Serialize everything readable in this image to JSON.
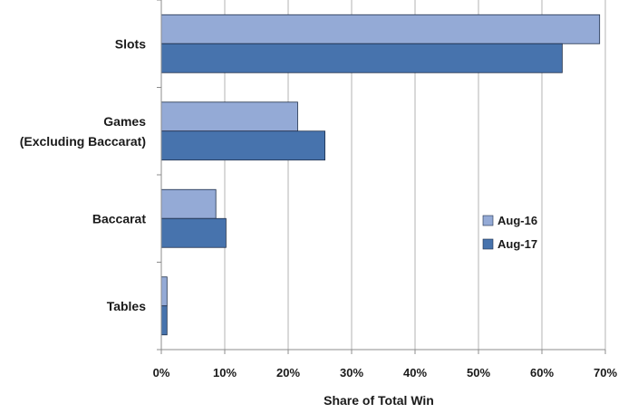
{
  "chart_data": {
    "type": "bar",
    "orientation": "horizontal",
    "categories": [
      "Slots",
      "Games\n(Excluding Baccarat)",
      "Baccarat",
      "Tables"
    ],
    "series": [
      {
        "name": "Aug-16",
        "values": [
          69.1,
          21.5,
          8.6,
          0.9
        ],
        "color": "#94aad6"
      },
      {
        "name": "Aug-17",
        "values": [
          63.2,
          25.8,
          10.2,
          0.9
        ],
        "color": "#4773ad"
      }
    ],
    "xlabel": "Share of Total Win",
    "ylabel": "",
    "xlim": [
      0,
      70
    ],
    "xticks": [
      0,
      10,
      20,
      30,
      40,
      50,
      60,
      70
    ],
    "xtick_labels": [
      "0%",
      "10%",
      "20%",
      "30%",
      "40%",
      "50%",
      "60%",
      "70%"
    ],
    "grid": "vertical",
    "legend_position": "right"
  }
}
